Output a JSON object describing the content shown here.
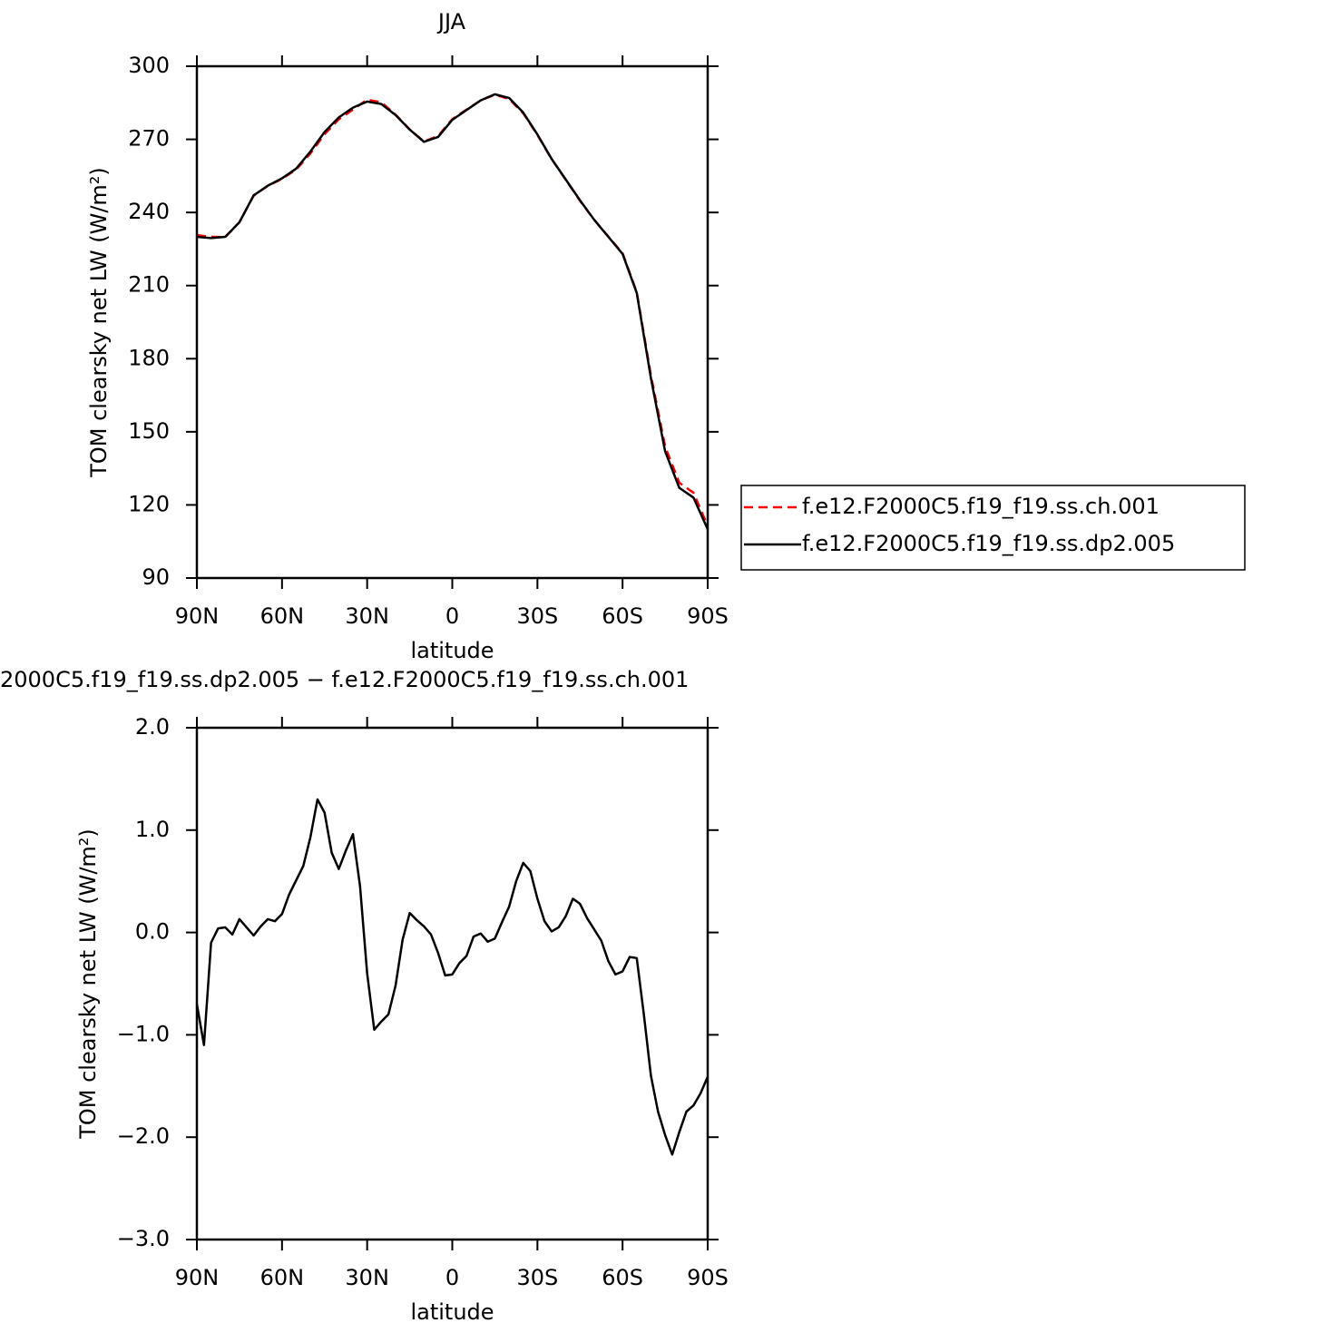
{
  "chart_data": [
    {
      "type": "line",
      "title": "JJA",
      "xlabel": "latitude",
      "ylabel": "TOM clearsky net LW (W/m²)",
      "xlim": [
        90,
        -90
      ],
      "ylim": [
        90,
        300
      ],
      "yticks": [
        90,
        120,
        150,
        180,
        210,
        240,
        270,
        300
      ],
      "xticks": [
        {
          "value": 90,
          "label": "90N"
        },
        {
          "value": 60,
          "label": "60N"
        },
        {
          "value": 30,
          "label": "30N"
        },
        0,
        {
          "value": -30,
          "label": "30S"
        },
        {
          "value": -60,
          "label": "60S"
        },
        {
          "value": -90,
          "label": "90S"
        }
      ],
      "legend": "right",
      "x": [
        90,
        85,
        80,
        75,
        70,
        65,
        60,
        55,
        50,
        45,
        40,
        35,
        30,
        25,
        20,
        15,
        10,
        5,
        0,
        -5,
        -10,
        -15,
        -20,
        -25,
        -30,
        -35,
        -40,
        -45,
        -50,
        -55,
        -60,
        -65,
        -70,
        -75,
        -80,
        -85,
        -90
      ],
      "series": [
        {
          "name": "f.e12.F2000C5.f19_f19.ss.ch.001",
          "color": "#ff0000",
          "dash": true,
          "values": [
            230.7,
            230,
            229.9,
            236,
            246.9,
            250.9,
            253.8,
            257.6,
            264.2,
            272.1,
            278.2,
            282.2,
            286.3,
            285.2,
            280.2,
            274.1,
            269.1,
            271.4,
            278.3,
            282.2,
            286,
            288.3,
            286.6,
            280.7,
            271.8,
            261.9,
            253.4,
            244.8,
            237,
            230.1,
            223.3,
            207.3,
            173.2,
            144,
            129.1,
            125,
            111.4
          ]
        },
        {
          "name": "f.e12.F2000C5.f19_f19.ss.dp2.005",
          "color": "#000000",
          "dash": false,
          "values": [
            230,
            229.5,
            230,
            236,
            247,
            251,
            254,
            258,
            265,
            273,
            279,
            283,
            285.5,
            284.5,
            280,
            274,
            269,
            271,
            278,
            282,
            286,
            288.5,
            287,
            281,
            272,
            262,
            253.5,
            245,
            237,
            230,
            223,
            207,
            172,
            142,
            127,
            123,
            110
          ]
        }
      ]
    },
    {
      "type": "line",
      "title": "2000C5.f19_f19.ss.dp2.005 − f.e12.F2000C5.f19_f19.ss.ch.001",
      "xlabel": "latitude",
      "ylabel": "TOM clearsky net LW (W/m²)",
      "xlim": [
        90,
        -90
      ],
      "ylim": [
        -3,
        2
      ],
      "yticks": [
        {
          "value": -3,
          "label": "−3.0"
        },
        {
          "value": -2,
          "label": "−2.0"
        },
        {
          "value": -1,
          "label": "−1.0"
        },
        {
          "value": 0,
          "label": "0.0"
        },
        {
          "value": 1,
          "label": "1.0"
        },
        {
          "value": 2,
          "label": "2.0"
        }
      ],
      "xticks": [
        {
          "value": 90,
          "label": "90N"
        },
        {
          "value": 60,
          "label": "60N"
        },
        {
          "value": 30,
          "label": "30N"
        },
        0,
        {
          "value": -30,
          "label": "30S"
        },
        {
          "value": -60,
          "label": "60S"
        },
        {
          "value": -90,
          "label": "90S"
        }
      ],
      "x": [
        90,
        87.5,
        85,
        82.5,
        80,
        77.5,
        75,
        72.5,
        70,
        67.5,
        65,
        62.5,
        60,
        57.5,
        55,
        52.5,
        50,
        47.5,
        45,
        42.5,
        40,
        37.5,
        35,
        32.5,
        30,
        27.5,
        25,
        22.5,
        20,
        17.5,
        15,
        12.5,
        10,
        7.5,
        5,
        2.5,
        0,
        -2.5,
        -5,
        -7.5,
        -10,
        -12.5,
        -15,
        -17.5,
        -20,
        -22.5,
        -25,
        -27.5,
        -30,
        -32.5,
        -35,
        -37.5,
        -40,
        -42.5,
        -45,
        -47.5,
        -50,
        -52.5,
        -55,
        -57.5,
        -60,
        -62.5,
        -65,
        -67.5,
        -70,
        -72.5,
        -75,
        -77.5,
        -80,
        -82.5,
        -85,
        -87.5,
        -90
      ],
      "series": [
        {
          "color": "#000000",
          "dash": false,
          "values": [
            -0.7,
            -1.1,
            -0.1,
            0.04,
            0.05,
            -0.02,
            0.13,
            0.05,
            -0.03,
            0.06,
            0.13,
            0.11,
            0.18,
            0.37,
            0.51,
            0.65,
            0.93,
            1.3,
            1.17,
            0.78,
            0.62,
            0.8,
            0.96,
            0.45,
            -0.4,
            -0.95,
            -0.87,
            -0.8,
            -0.52,
            -0.07,
            0.19,
            0.12,
            0.06,
            -0.02,
            -0.2,
            -0.42,
            -0.41,
            -0.3,
            -0.23,
            -0.04,
            -0.01,
            -0.09,
            -0.06,
            0.1,
            0.25,
            0.5,
            0.68,
            0.6,
            0.33,
            0.11,
            0.01,
            0.05,
            0.16,
            0.33,
            0.28,
            0.14,
            0.03,
            -0.08,
            -0.28,
            -0.41,
            -0.38,
            -0.24,
            -0.25,
            -0.8,
            -1.4,
            -1.75,
            -1.98,
            -2.17,
            -1.95,
            -1.75,
            -1.69,
            -1.57,
            -1.41
          ]
        }
      ]
    }
  ]
}
